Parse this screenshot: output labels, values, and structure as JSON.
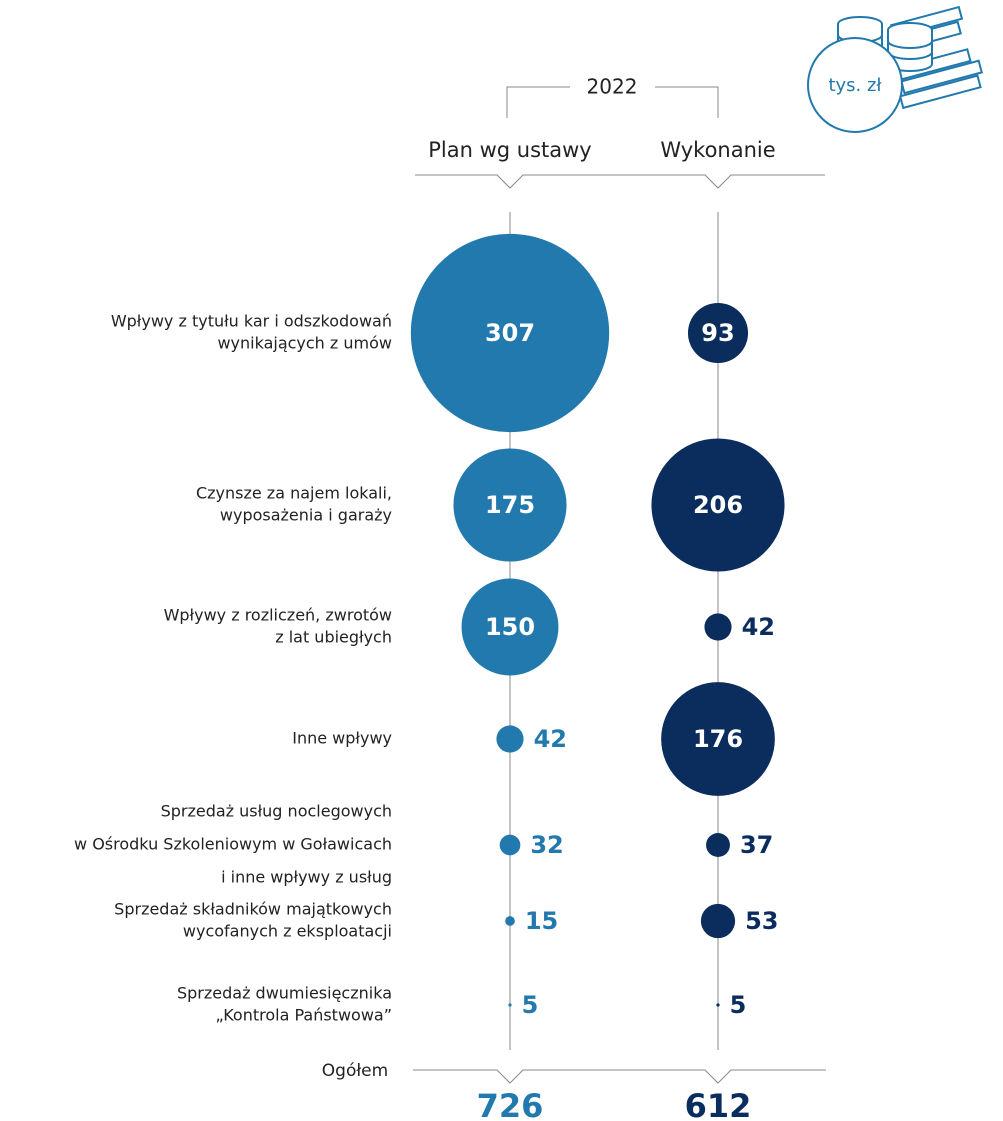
{
  "chart_data": {
    "type": "bubble",
    "year": "2022",
    "unit": "tys. zł",
    "categories": [
      [
        "Wpływy z tytułu kar i odszkodowań",
        "wynikających z umów"
      ],
      [
        "Czynsze za najem lokali,",
        "wyposażenia i garaży"
      ],
      [
        "Wpływy z rozliczeń, zwrotów",
        "z lat ubiegłych"
      ],
      [
        "Inne wpływy"
      ],
      [
        "Sprzedaż usług noclegowych",
        "w Ośrodku Szkoleniowym w Goławicach",
        "i inne wpływy z usług"
      ],
      [
        "Sprzedaż składników majątkowych",
        "wycofanych z eksploatacji"
      ],
      [
        "Sprzedaż dwumiesięcznika",
        "„Kontrola Państwowa”"
      ]
    ],
    "series": [
      {
        "name": "Plan wg ustawy",
        "color": "#2179ae",
        "values": [
          307,
          175,
          150,
          42,
          32,
          15,
          5
        ],
        "total": 726
      },
      {
        "name": "Wykonanie",
        "color": "#0a2d5e",
        "values": [
          93,
          206,
          42,
          176,
          37,
          53,
          5
        ],
        "total": 612
      }
    ],
    "total_label": "Ogółem"
  }
}
